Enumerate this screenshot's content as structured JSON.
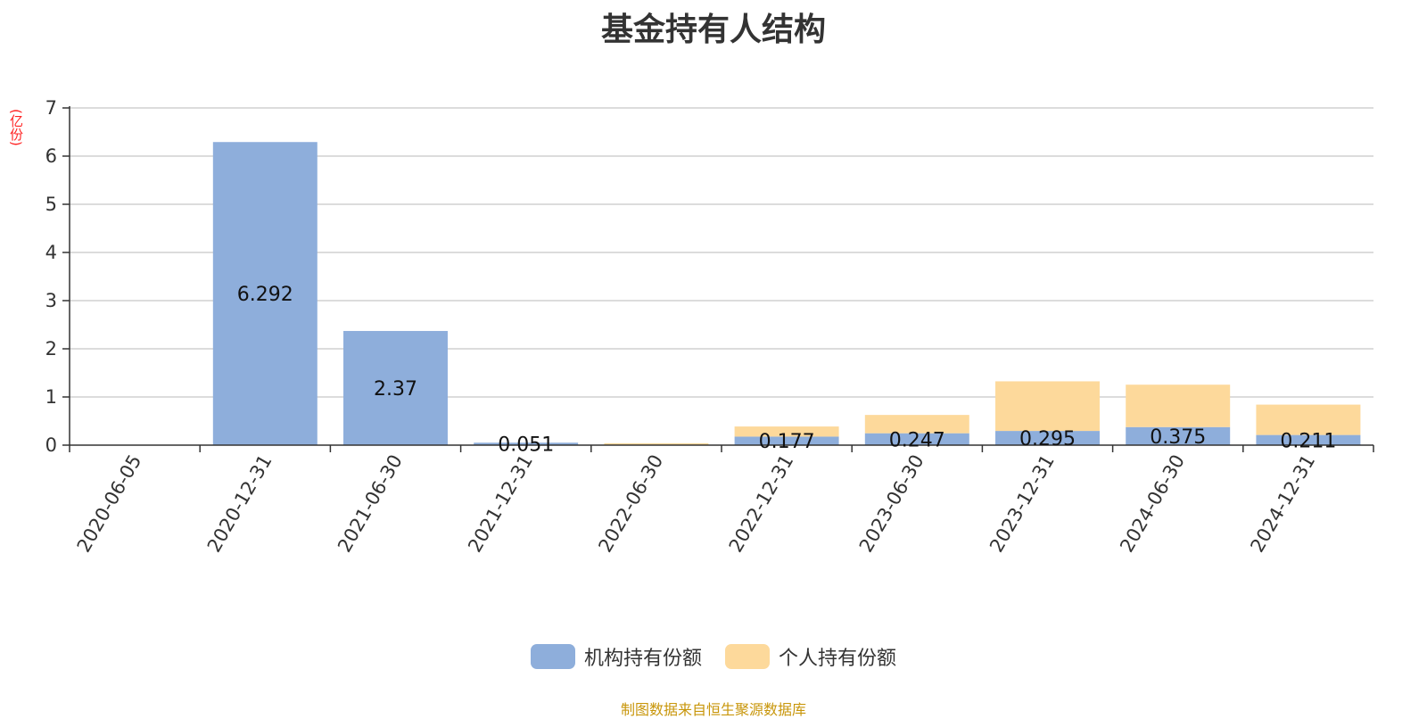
{
  "chart_data": {
    "type": "bar",
    "stacked": true,
    "title": "基金持有人结构",
    "unit": "(亿份)",
    "categories": [
      "2020-06-05",
      "2020-12-31",
      "2021-06-30",
      "2021-12-31",
      "2022-06-30",
      "2022-12-31",
      "2023-06-30",
      "2023-12-31",
      "2024-06-30",
      "2024-12-31"
    ],
    "series": [
      {
        "name": "机构持有份额",
        "color": "#8eaedb",
        "values": [
          0,
          6.292,
          2.37,
          0.051,
          0.0,
          0.177,
          0.247,
          0.295,
          0.375,
          0.211
        ],
        "labels": [
          "",
          "6.292",
          "2.37",
          "0.051",
          "",
          "0.177",
          "0.247",
          "0.295",
          "0.375",
          "0.211"
        ]
      },
      {
        "name": "个人持有份额",
        "color": "#fdd99b",
        "values": [
          0,
          0,
          0,
          0.0,
          0.04,
          0.21,
          0.38,
          1.03,
          0.88,
          0.63
        ]
      }
    ],
    "ylim": [
      0,
      7
    ],
    "yticks": [
      0,
      1,
      2,
      3,
      4,
      5,
      6,
      7
    ],
    "grid": true,
    "legend_position": "bottom-center"
  },
  "source_note": "制图数据来自恒生聚源数据库"
}
